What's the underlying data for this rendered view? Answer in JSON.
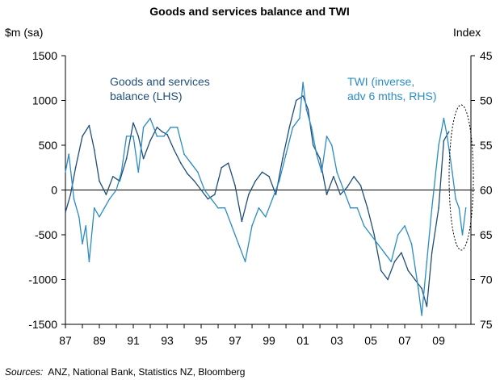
{
  "chart_data": {
    "type": "line",
    "title": "Goods and services balance and TWI",
    "ylabel_left": "$m (sa)",
    "ylabel_right": "Index",
    "x_ticks": [
      "87",
      "89",
      "91",
      "93",
      "95",
      "97",
      "99",
      "01",
      "03",
      "05",
      "07",
      "09"
    ],
    "x_range": [
      1987,
      2010.9
    ],
    "y_left_ticks": [
      "1500",
      "1000",
      "500",
      "0",
      "-500",
      "-1000",
      "-1500"
    ],
    "y_left_range": [
      -1500,
      1500
    ],
    "y_right_ticks": [
      "45",
      "50",
      "55",
      "60",
      "65",
      "70",
      "75"
    ],
    "y_right_range": [
      45,
      75
    ],
    "y_right_inverted": true,
    "series": [
      {
        "name": "Goods and services balance (LHS)",
        "label_lines": [
          "Goods and services",
          "balance (LHS)"
        ],
        "axis": "left",
        "color": "#1f4e79",
        "x": [
          1987.0,
          1987.3,
          1987.6,
          1988.0,
          1988.4,
          1988.7,
          1989.0,
          1989.4,
          1989.8,
          1990.2,
          1990.6,
          1991.0,
          1991.3,
          1991.6,
          1992.0,
          1992.4,
          1992.7,
          1993.0,
          1993.4,
          1993.8,
          1994.2,
          1994.6,
          1995.0,
          1995.4,
          1995.8,
          1996.2,
          1996.6,
          1997.0,
          1997.4,
          1997.8,
          1998.2,
          1998.6,
          1999.0,
          1999.4,
          1999.8,
          2000.2,
          2000.6,
          2001.0,
          2001.3,
          2001.6,
          2002.0,
          2002.4,
          2002.8,
          2003.2,
          2003.6,
          2004.0,
          2004.4,
          2004.8,
          2005.2,
          2005.6,
          2006.0,
          2006.4,
          2006.8,
          2007.2,
          2007.6,
          2008.0,
          2008.3,
          2008.6,
          2009.0,
          2009.3,
          2009.6
        ],
        "values": [
          -250,
          -50,
          250,
          600,
          720,
          450,
          100,
          -50,
          150,
          100,
          350,
          750,
          600,
          350,
          550,
          700,
          650,
          620,
          450,
          300,
          180,
          100,
          0,
          -100,
          -50,
          250,
          300,
          50,
          -350,
          -50,
          100,
          200,
          150,
          -50,
          350,
          700,
          1000,
          1050,
          900,
          500,
          350,
          -50,
          150,
          -50,
          30,
          150,
          50,
          -200,
          -500,
          -900,
          -1000,
          -800,
          -700,
          -900,
          -1000,
          -1100,
          -1300,
          -700,
          -200,
          550,
          650
        ]
      },
      {
        "name": "TWI (inverse, adv 6 mths, RHS)",
        "label_lines": [
          "TWI (inverse,",
          "adv 6 mths, RHS)"
        ],
        "axis": "right",
        "color": "#2b8cc4",
        "x": [
          1987.0,
          1987.2,
          1987.5,
          1987.8,
          1988.0,
          1988.2,
          1988.4,
          1988.7,
          1989.0,
          1989.3,
          1989.6,
          1990.0,
          1990.3,
          1990.6,
          1991.0,
          1991.3,
          1991.6,
          1992.0,
          1992.4,
          1992.8,
          1993.2,
          1993.6,
          1994.0,
          1994.4,
          1994.8,
          1995.2,
          1995.6,
          1996.0,
          1996.4,
          1996.8,
          1997.2,
          1997.6,
          1998.0,
          1998.4,
          1998.8,
          1999.2,
          1999.6,
          2000.0,
          2000.4,
          2000.8,
          2001.0,
          2001.2,
          2001.5,
          2001.8,
          2002.1,
          2002.4,
          2002.7,
          2003.0,
          2003.4,
          2003.8,
          2004.2,
          2004.6,
          2005.0,
          2005.4,
          2005.8,
          2006.2,
          2006.6,
          2007.0,
          2007.4,
          2007.8,
          2008.0,
          2008.3,
          2008.6,
          2009.0,
          2009.3,
          2009.5,
          2009.8,
          2010.0,
          2010.2,
          2010.4,
          2010.6
        ],
        "values": [
          58,
          56,
          61,
          63,
          66,
          64,
          68,
          62,
          63,
          62,
          61,
          60,
          58,
          54,
          54,
          58,
          53,
          52,
          54,
          54,
          53,
          53,
          56,
          57,
          58,
          60,
          61,
          62,
          62,
          64,
          66,
          68,
          64,
          62,
          63,
          61,
          59,
          56,
          53,
          52,
          48,
          51,
          53,
          56,
          58,
          54,
          55,
          58,
          60,
          62,
          62,
          64,
          65,
          66,
          67,
          68,
          65,
          64,
          66,
          71,
          74,
          68,
          62,
          55,
          52,
          54,
          58,
          61,
          62,
          65,
          62
        ]
      }
    ]
  },
  "source_label": "Sources:",
  "source_text": "ANZ, National Bank, Statistics NZ, Bloomberg"
}
